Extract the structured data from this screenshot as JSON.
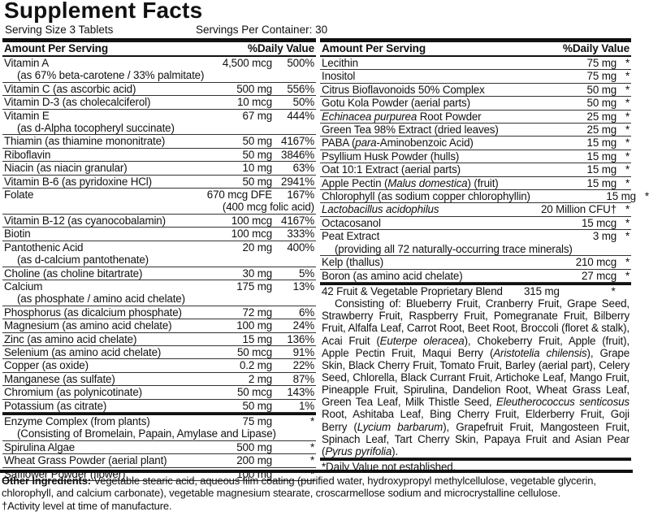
{
  "title": "Supplement Facts",
  "serving_size": "Serving Size 3 Tablets",
  "servings_per_container": "Servings Per Container: 30",
  "left_panel": {
    "header": {
      "amount": "Amount Per Serving",
      "daily_value": "%Daily Value"
    },
    "rows": [
      {
        "name": "Vitamin A",
        "sub": "(as 67% beta-carotene / 33% palmitate)",
        "amount": "4,500 mcg",
        "dv": "500%"
      },
      {
        "name": "Vitamin C (as ascorbic acid)",
        "amount": "500 mg",
        "dv": "556%"
      },
      {
        "name": "Vitamin D-3 (as cholecalciferol)",
        "amount": "10 mcg",
        "dv": "50%"
      },
      {
        "name": "Vitamin E",
        "sub": "(as d-Alpha tocopheryl succinate)",
        "amount": "67 mg",
        "dv": "444%"
      },
      {
        "name": "Thiamin (as thiamine mononitrate)",
        "amount": "50 mg",
        "dv": "4167%"
      },
      {
        "name": "Riboflavin",
        "amount": "50 mg",
        "dv": "3846%"
      },
      {
        "name": "Niacin (as niacin granular)",
        "amount": "10 mg",
        "dv": "63%"
      },
      {
        "name": "Vitamin B-6 (as pyridoxine HCl)",
        "amount": "50 mg",
        "dv": "2941%"
      },
      {
        "name": "Folate",
        "amount": "670 mcg DFE",
        "dv": "167%",
        "amount_sub": "(400 mcg folic acid)"
      },
      {
        "name": "Vitamin B-12 (as cyanocobalamin)",
        "amount": "100 mcg",
        "dv": "4167%"
      },
      {
        "name": "Biotin",
        "amount": "100 mcg",
        "dv": "333%"
      },
      {
        "name": "Pantothenic Acid",
        "sub": "(as d-calcium pantothenate)",
        "amount": "20 mg",
        "dv": "400%"
      },
      {
        "name": "Choline (as choline bitartrate)",
        "amount": "30 mg",
        "dv": "5%"
      },
      {
        "name": "Calcium",
        "sub": "(as phosphate / amino acid chelate)",
        "amount": "175 mg",
        "dv": "13%"
      },
      {
        "name": "Phosphorus (as dicalcium phosphate)",
        "amount": "72 mg",
        "dv": "6%"
      },
      {
        "name": "Magnesium (as amino acid chelate)",
        "amount": "100 mg",
        "dv": "24%"
      },
      {
        "name": "Zinc (as amino acid chelate)",
        "amount": "15 mg",
        "dv": "136%"
      },
      {
        "name": "Selenium (as amino acid chelate)",
        "amount": "50 mcg",
        "dv": "91%"
      },
      {
        "name": "Copper (as oxide)",
        "amount": "0.2 mg",
        "dv": "22%"
      },
      {
        "name": "Manganese (as sulfate)",
        "amount": "2 mg",
        "dv": "87%"
      },
      {
        "name": "Chromium (as polynicotinate)",
        "amount": "50 mcg",
        "dv": "143%"
      },
      {
        "name": "Potassium (as citrate)",
        "amount": "50 mg",
        "dv": "1%"
      },
      {
        "name": "Enzyme Complex (from plants)",
        "sub": "(Consisting of Bromelain, Papain, Amylase and Lipase)",
        "amount": "75 mg",
        "dv": "*",
        "thick_above": true
      },
      {
        "name": "Spirulina Algae",
        "amount": "500 mg",
        "dv": "*"
      },
      {
        "name": "Wheat Grass Powder (aerial plant)",
        "amount": "200 mg",
        "dv": "*"
      },
      {
        "name": "Safflower Powder (flower)",
        "amount": "100 mg",
        "dv": "*"
      }
    ]
  },
  "right_panel": {
    "header": {
      "amount": "Amount Per Serving",
      "daily_value": "%Daily Value"
    },
    "rows": [
      {
        "name": "Lecithin",
        "amount": "75 mg",
        "dv": "*"
      },
      {
        "name": "Inositol",
        "amount": "75 mg",
        "dv": "*"
      },
      {
        "name": "Citrus Bioflavonoids 50% Complex",
        "amount": "50 mg",
        "dv": "*"
      },
      {
        "name": "Gotu Kola Powder (aerial parts)",
        "amount": "50 mg",
        "dv": "*"
      },
      {
        "name": [
          {
            "text": "Echinacea purpurea",
            "italic": true
          },
          {
            "text": " Root Powder"
          }
        ],
        "amount": "25 mg",
        "dv": "*"
      },
      {
        "name": "Green Tea 98% Extract (dried leaves)",
        "amount": "25 mg",
        "dv": "*"
      },
      {
        "name": [
          {
            "text": "PABA ("
          },
          {
            "text": "para",
            "italic": true
          },
          {
            "text": "-Aminobenzoic Acid)"
          }
        ],
        "amount": "15 mg",
        "dv": "*"
      },
      {
        "name": "Psyllium Husk Powder (hulls)",
        "amount": "15 mg",
        "dv": "*"
      },
      {
        "name": "Oat 10:1 Extract (aerial parts)",
        "amount": "15 mg",
        "dv": "*"
      },
      {
        "name": [
          {
            "text": "Apple Pectin ("
          },
          {
            "text": "Malus domestica",
            "italic": true
          },
          {
            "text": ") (fruit)"
          }
        ],
        "amount": "15 mg",
        "dv": "*"
      },
      {
        "name": "Chlorophyll (as sodium copper chlorophyllin)",
        "amount": "15 mg",
        "dv": "*"
      },
      {
        "name": [
          {
            "text": "Lactobacillus acidophilus",
            "italic": true
          }
        ],
        "amount": "20 Million CFU†",
        "dv": "*"
      },
      {
        "name": "Octacosanol",
        "amount": "15 mcg",
        "dv": "*"
      },
      {
        "name": "Peat Extract",
        "sub": "(providing all 72 naturally-occurring trace minerals)",
        "amount": "3 mg",
        "dv": "*"
      },
      {
        "name": "Kelp (thallus)",
        "amount": "210 mcg",
        "dv": "*"
      },
      {
        "name": "Boron (as amino acid chelate)",
        "amount": "27 mcg",
        "dv": "*"
      }
    ],
    "blend": {
      "name": "42 Fruit & Vegetable Proprietary Blend",
      "amount": "315 mg",
      "dv": "*",
      "text": [
        {
          "text": "Consisting of: Blueberry Fruit, Cranberry Fruit, Grape Seed, Strawberry Fruit, Raspberry Fruit, Pomegranate Fruit, Bilberry Fruit, Alfalfa Leaf, Carrot Root, Beet Root, Broccoli (floret & stalk), Acai Fruit ("
        },
        {
          "text": "Euterpe oleracea",
          "italic": true
        },
        {
          "text": "), Chokeberry Fruit, Apple (fruit), Apple Pectin Fruit, Maqui Berry ("
        },
        {
          "text": "Aristotelia chilensis",
          "italic": true
        },
        {
          "text": "), Grape Skin, Black Cherry Fruit, Tomato Fruit, Barley (aerial part), Celery Seed, Chlorella, Black Currant Fruit, Artichoke Leaf, Mango Fruit, Pineapple Fruit, Spirulina, Dandelion Root, Wheat Grass Leaf, Green Tea Leaf, Milk Thistle Seed, "
        },
        {
          "text": "Eleutherococcus senticosus",
          "italic": true
        },
        {
          "text": " Root, Ashitaba Leaf, Bing Cherry Fruit, Elderberry Fruit, Goji Berry ("
        },
        {
          "text": "Lycium barbarum",
          "italic": true
        },
        {
          "text": "), Grapefruit Fruit, Mangosteen Fruit, Spinach Leaf, Tart Cherry Skin, Papaya Fruit and Asian Pear ("
        },
        {
          "text": "Pyrus pyrifolia",
          "italic": true
        },
        {
          "text": ")."
        }
      ]
    },
    "footnote": "*Daily Value not established."
  },
  "other_ingredients": {
    "label": "Other Ingredients:",
    "text": " Vegetable stearic acid, aqueous film coating (purified water, hydroxypropyl methylcellulose, vegetable glycerin, chlorophyll, and calcium carbonate), vegetable magnesium stearate, croscarmellose sodium and microcrystalline cellulose.",
    "activity_note": "†Activity level at time of manufacture."
  }
}
